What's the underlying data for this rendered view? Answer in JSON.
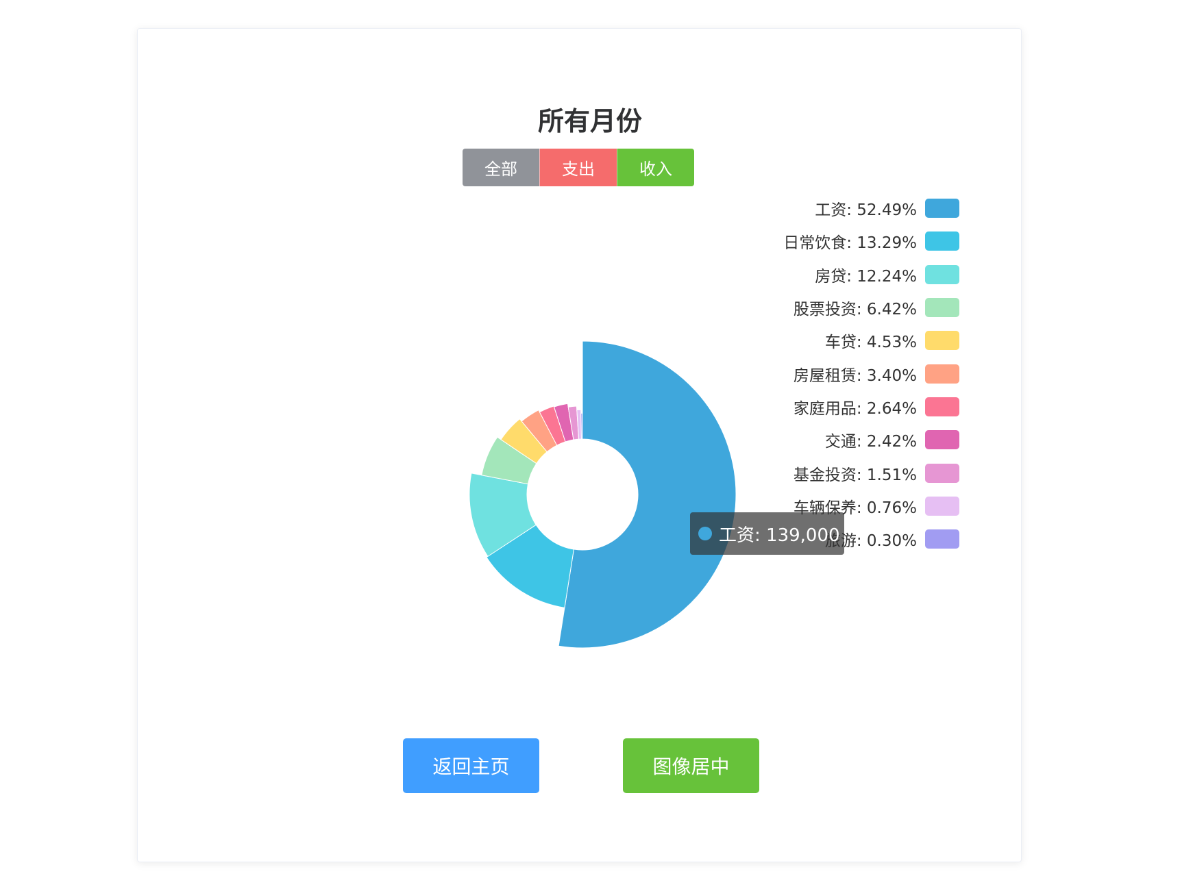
{
  "page": {
    "title": "所有月份",
    "filters": [
      {
        "label": "全部",
        "color": "#909399"
      },
      {
        "label": "支出",
        "color": "#f56c6c"
      },
      {
        "label": "收入",
        "color": "#67c23a"
      }
    ],
    "buttons": {
      "home": {
        "label": "返回主页",
        "color": "#409eff"
      },
      "center": {
        "label": "图像居中",
        "color": "#67c23a"
      }
    },
    "tooltip": {
      "label": "工资: 139,000",
      "color": "#3fa7dc"
    }
  },
  "chart_data": {
    "type": "pie",
    "variant": "donut",
    "title": "所有月份",
    "legend_position": "right",
    "highlighted": "工资",
    "slices": [
      {
        "name": "工资",
        "percent": 52.49,
        "value": 139000,
        "color": "#3fa7dc",
        "legend_label": "工资: 52.49%"
      },
      {
        "name": "日常饮食",
        "percent": 13.29,
        "color": "#3ec5e6",
        "legend_label": "日常饮食: 13.29%"
      },
      {
        "name": "房贷",
        "percent": 12.24,
        "color": "#6fe1e0",
        "legend_label": "房贷: 12.24%"
      },
      {
        "name": "股票投资",
        "percent": 6.42,
        "color": "#a3e6ba",
        "legend_label": "股票投资: 6.42%"
      },
      {
        "name": "车贷",
        "percent": 4.53,
        "color": "#ffdb6b",
        "legend_label": "车贷: 4.53%"
      },
      {
        "name": "房屋租赁",
        "percent": 3.4,
        "color": "#ffa284",
        "legend_label": "房屋租赁: 3.40%"
      },
      {
        "name": "家庭用品",
        "percent": 2.64,
        "color": "#fb7593",
        "legend_label": "家庭用品: 2.64%"
      },
      {
        "name": "交通",
        "percent": 2.42,
        "color": "#e065b1",
        "legend_label": "交通: 2.42%"
      },
      {
        "name": "基金投资",
        "percent": 1.51,
        "color": "#e696d3",
        "legend_label": "基金投资: 1.51%"
      },
      {
        "name": "车辆保养",
        "percent": 0.76,
        "color": "#e6bff3",
        "legend_label": "车辆保养: 0.76%"
      },
      {
        "name": "旅游",
        "percent": 0.3,
        "color": "#a19cf2",
        "legend_label": "旅游: 0.30%"
      }
    ]
  }
}
